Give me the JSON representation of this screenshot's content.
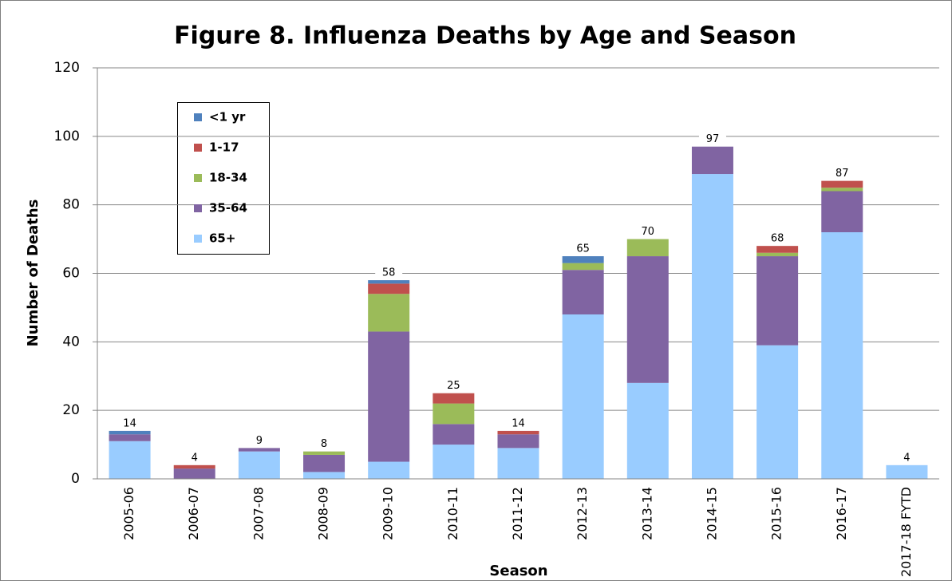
{
  "chart_data": {
    "type": "stacked-bar",
    "title": "Figure 8. Influenza Deaths by Age and Season",
    "x_label": "Season",
    "y_label": "Number of Deaths",
    "categories": [
      "2005-06",
      "2006-07",
      "2007-08",
      "2008-09",
      "2009-10",
      "2010-11",
      "2011-12",
      "2012-13",
      "2013-14",
      "2014-15",
      "2015-16",
      "2016-17",
      "2017-18 FYTD"
    ],
    "series": [
      {
        "name": "<1 yr",
        "color": "#4f81bd",
        "values": [
          1,
          0,
          0,
          0,
          1,
          0,
          0,
          2,
          0,
          0,
          0,
          0,
          0
        ]
      },
      {
        "name": "1-17",
        "color": "#c0504d",
        "values": [
          0,
          1,
          0,
          0,
          3,
          3,
          1,
          0,
          0,
          0,
          2,
          2,
          0
        ]
      },
      {
        "name": "18-34",
        "color": "#9bbb59",
        "values": [
          0,
          0,
          0,
          1,
          11,
          6,
          0,
          2,
          5,
          0,
          1,
          1,
          0
        ]
      },
      {
        "name": "35-64",
        "color": "#8064a2",
        "values": [
          2,
          3,
          1,
          5,
          38,
          6,
          4,
          13,
          37,
          8,
          26,
          12,
          0
        ]
      },
      {
        "name": "65+",
        "color": "#99ccff",
        "values": [
          11,
          0,
          8,
          2,
          5,
          10,
          9,
          48,
          28,
          89,
          39,
          72,
          4
        ]
      }
    ],
    "totals": [
      14,
      4,
      9,
      8,
      58,
      25,
      14,
      65,
      70,
      97,
      68,
      87,
      4
    ],
    "ylim": [
      0,
      120
    ],
    "yticks": [
      0,
      20,
      40,
      60,
      80,
      100,
      120
    ],
    "grid": true
  }
}
